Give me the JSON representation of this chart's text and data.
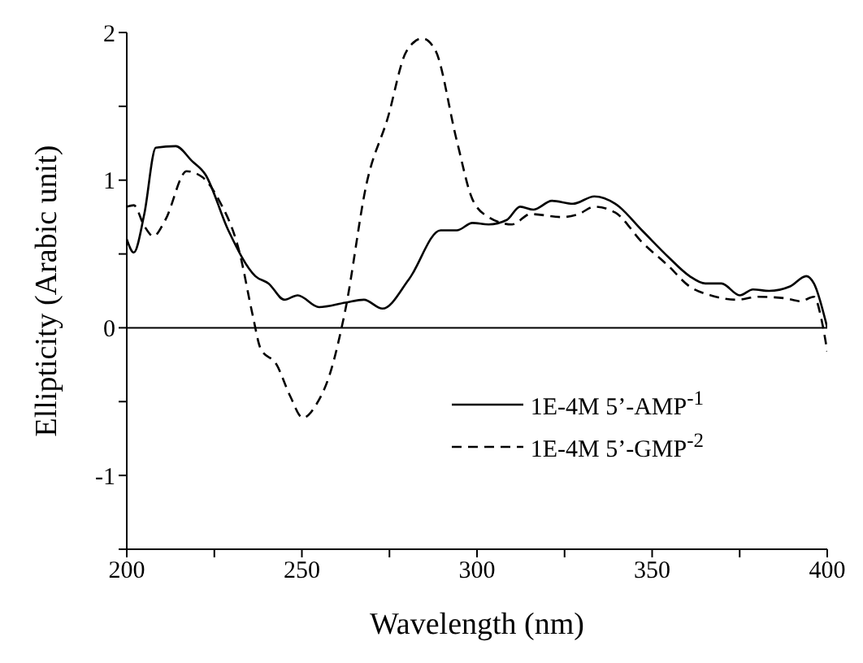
{
  "chart_data": {
    "type": "line",
    "xlabel": "Wavelength (nm)",
    "ylabel": "Ellipticity (Arabic unit)",
    "xlim": [
      200,
      400
    ],
    "ylim": [
      -1.5,
      2
    ],
    "xticks": [
      200,
      {
        "value": 225,
        "label": null
      },
      250,
      {
        "value": 275,
        "label": null
      },
      300,
      {
        "value": 325,
        "label": null
      },
      350,
      {
        "value": 375,
        "label": null
      },
      400
    ],
    "yticks": [
      {
        "value": -1.5,
        "label": null
      },
      -1,
      {
        "value": -0.5,
        "label": null
      },
      0,
      {
        "value": 0.5,
        "label": null
      },
      1,
      {
        "value": 1.5,
        "label": null
      },
      2
    ],
    "grid": false,
    "legend": "bottom right",
    "marker": "none",
    "ref_lines": [
      {
        "axis": "y",
        "value": 0,
        "label": null,
        "color": "#000000",
        "line_style": "solid"
      }
    ],
    "series": [
      {
        "name": "1E-4M 5’-AMP$^{-1}$",
        "color": "#000000",
        "line_style": "solid",
        "x": [
          200,
          202,
          205,
          208.3,
          214,
          218.6,
          222.4,
          229,
          236.7,
          240.5,
          245,
          248.8,
          254.9,
          262.4,
          267.7,
          273,
          280.6,
          289.6,
          294.2,
          298.7,
          303.3,
          308.5,
          312.3,
          316.1,
          321.4,
          327.4,
          333.5,
          339.5,
          347.1,
          354.6,
          360.7,
          365.2,
          369.8,
          375,
          378.8,
          383.4,
          389.4,
          394,
          396.2,
          400
        ],
        "values": [
          0.6,
          0.51,
          0.77,
          1.22,
          1.23,
          1.13,
          1.04,
          0.66,
          0.35,
          0.3,
          0.19,
          0.22,
          0.14,
          0.17,
          0.19,
          0.13,
          0.33,
          0.66,
          0.66,
          0.71,
          0.7,
          0.73,
          0.82,
          0.8,
          0.86,
          0.84,
          0.89,
          0.84,
          0.66,
          0.48,
          0.35,
          0.3,
          0.3,
          0.22,
          0.26,
          0.25,
          0.28,
          0.35,
          0.3,
          0.0
        ]
      },
      {
        "name": "1E-4M 5’-GMP$^{-2}$",
        "color": "#000000",
        "line_style": "dashed",
        "x": [
          200,
          202,
          205,
          207.6,
          211,
          217.1,
          221.6,
          226.2,
          232.2,
          236,
          238.2,
          242.8,
          246.6,
          250.3,
          254.1,
          257.9,
          262.4,
          268.5,
          274.5,
          279.8,
          284.4,
          288.1,
          294.2,
          298.7,
          303.3,
          310,
          315.3,
          324.4,
          329,
          333.5,
          339.5,
          347.1,
          354.6,
          360.7,
          366.7,
          374.3,
          380.3,
          387.9,
          392.4,
          396.2,
          398.5,
          400
        ],
        "values": [
          0.82,
          0.83,
          0.69,
          0.62,
          0.73,
          1.06,
          1.02,
          0.87,
          0.51,
          0.08,
          -0.14,
          -0.25,
          -0.46,
          -0.61,
          -0.52,
          -0.32,
          0.12,
          0.98,
          1.42,
          1.87,
          1.96,
          1.88,
          1.27,
          0.87,
          0.75,
          0.7,
          0.77,
          0.75,
          0.77,
          0.82,
          0.78,
          0.58,
          0.42,
          0.28,
          0.22,
          0.19,
          0.21,
          0.2,
          0.18,
          0.21,
          0.04,
          -0.16
        ]
      }
    ]
  }
}
